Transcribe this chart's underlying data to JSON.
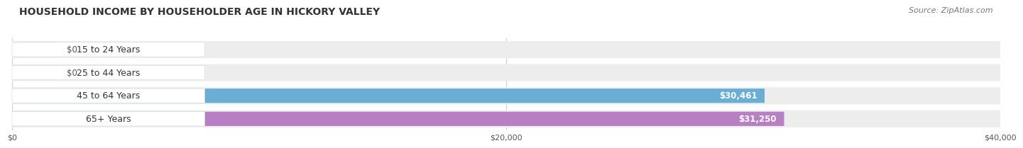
{
  "title": "HOUSEHOLD INCOME BY HOUSEHOLDER AGE IN HICKORY VALLEY",
  "source": "Source: ZipAtlas.com",
  "categories": [
    "65+ Years",
    "45 to 64 Years",
    "25 to 44 Years",
    "15 to 24 Years"
  ],
  "values": [
    31250,
    30461,
    0,
    0
  ],
  "bar_colors": [
    "#B87FC4",
    "#6AAED6",
    "#E88C8C",
    "#F5BA8A"
  ],
  "bg_bar_color": "#EDEDEE",
  "xlim": [
    0,
    40000
  ],
  "xticks": [
    0,
    20000,
    40000
  ],
  "xtick_labels": [
    "$0",
    "$20,000",
    "$40,000"
  ],
  "title_fontsize": 10,
  "source_fontsize": 8,
  "label_fontsize": 9,
  "value_fontsize": 8.5,
  "bar_height": 0.62,
  "bg_color": "#FFFFFF",
  "label_bg": "#FFFFFF",
  "grid_color": "#CCCCCC"
}
